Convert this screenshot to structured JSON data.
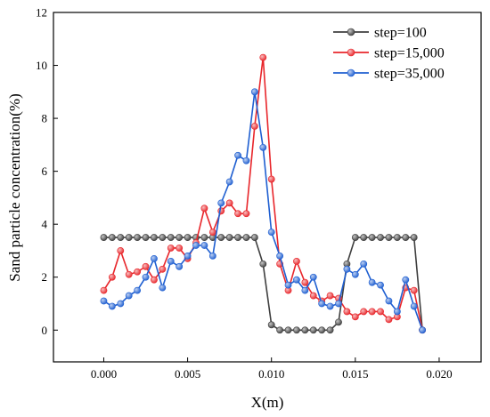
{
  "chart_data": {
    "type": "line",
    "xlabel": "X(m)",
    "ylabel": "Sand particle concentration(%)",
    "xlim": [
      -0.003,
      0.0225
    ],
    "ylim": [
      -1.2,
      12
    ],
    "xticks": [
      "0.000",
      "0.005",
      "0.010",
      "0.015",
      "0.020"
    ],
    "xtick_values": [
      0,
      0.005,
      0.01,
      0.015,
      0.02
    ],
    "yticks": [
      "0",
      "2",
      "4",
      "6",
      "8",
      "10",
      "12"
    ],
    "ytick_values": [
      0,
      2,
      4,
      6,
      8,
      10,
      12
    ],
    "legend_position": "top-right",
    "grid": false,
    "series": [
      {
        "name": "step=100",
        "color": "#3f3f3f",
        "x": [
          0,
          0.0005,
          0.001,
          0.0015,
          0.002,
          0.0025,
          0.003,
          0.0035,
          0.004,
          0.0045,
          0.005,
          0.0055,
          0.006,
          0.0065,
          0.007,
          0.0075,
          0.008,
          0.0085,
          0.009,
          0.0095,
          0.01,
          0.0105,
          0.011,
          0.0115,
          0.012,
          0.0125,
          0.013,
          0.0135,
          0.014,
          0.0145,
          0.015,
          0.0155,
          0.016,
          0.0165,
          0.017,
          0.0175,
          0.018,
          0.0185,
          0.019
        ],
        "y": [
          3.5,
          3.5,
          3.5,
          3.5,
          3.5,
          3.5,
          3.5,
          3.5,
          3.5,
          3.5,
          3.5,
          3.5,
          3.5,
          3.5,
          3.5,
          3.5,
          3.5,
          3.5,
          3.5,
          2.5,
          0.2,
          0,
          0,
          0,
          0,
          0,
          0,
          0,
          0.3,
          2.5,
          3.5,
          3.5,
          3.5,
          3.5,
          3.5,
          3.5,
          3.5,
          3.5,
          0
        ]
      },
      {
        "name": "step=15,000",
        "color": "#e8262b",
        "x": [
          0,
          0.0005,
          0.001,
          0.0015,
          0.002,
          0.0025,
          0.003,
          0.0035,
          0.004,
          0.0045,
          0.005,
          0.0055,
          0.006,
          0.0065,
          0.007,
          0.0075,
          0.008,
          0.0085,
          0.009,
          0.0095,
          0.01,
          0.0105,
          0.011,
          0.0115,
          0.012,
          0.0125,
          0.013,
          0.0135,
          0.014,
          0.0145,
          0.015,
          0.0155,
          0.016,
          0.0165,
          0.017,
          0.0175,
          0.018,
          0.0185,
          0.019
        ],
        "y": [
          1.5,
          2.0,
          3.0,
          2.1,
          2.2,
          2.4,
          1.9,
          2.3,
          3.1,
          3.1,
          2.7,
          3.3,
          4.6,
          3.7,
          4.5,
          4.8,
          4.4,
          4.4,
          7.7,
          10.3,
          5.7,
          2.5,
          1.5,
          2.6,
          1.8,
          1.3,
          1.1,
          1.3,
          1.2,
          0.7,
          0.5,
          0.7,
          0.7,
          0.7,
          0.4,
          0.5,
          1.6,
          1.5,
          0
        ]
      },
      {
        "name": "step=35,000",
        "color": "#1f5fd1",
        "x": [
          0,
          0.0005,
          0.001,
          0.0015,
          0.002,
          0.0025,
          0.003,
          0.0035,
          0.004,
          0.0045,
          0.005,
          0.0055,
          0.006,
          0.0065,
          0.007,
          0.0075,
          0.008,
          0.0085,
          0.009,
          0.0095,
          0.01,
          0.0105,
          0.011,
          0.0115,
          0.012,
          0.0125,
          0.013,
          0.0135,
          0.014,
          0.0145,
          0.015,
          0.0155,
          0.016,
          0.0165,
          0.017,
          0.0175,
          0.018,
          0.0185,
          0.019
        ],
        "y": [
          1.1,
          0.9,
          1.0,
          1.3,
          1.5,
          2.0,
          2.7,
          1.6,
          2.6,
          2.4,
          2.8,
          3.2,
          3.2,
          2.8,
          4.8,
          5.6,
          6.6,
          6.4,
          9.0,
          6.9,
          3.7,
          2.8,
          1.7,
          1.9,
          1.5,
          2.0,
          1.0,
          0.9,
          1.0,
          2.3,
          2.1,
          2.5,
          1.8,
          1.7,
          1.1,
          0.7,
          1.9,
          0.9,
          0
        ]
      }
    ]
  }
}
